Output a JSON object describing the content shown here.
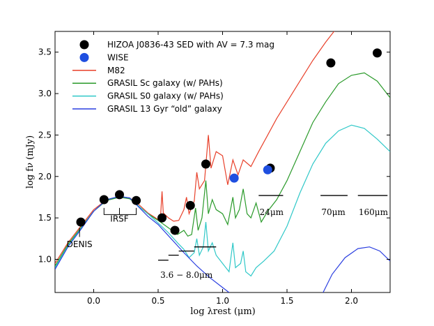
{
  "chart_data": {
    "type": "line",
    "title": "",
    "xlabel": "log λrest (μm)",
    "ylabel": "log fν (mJy)",
    "xlim": [
      -0.3,
      2.3
    ],
    "ylim": [
      0.6,
      3.75
    ],
    "xticks": [
      {
        "value": 0.0,
        "label": "0.0"
      },
      {
        "value": 0.5,
        "label": "0.5"
      },
      {
        "value": 1.0,
        "label": "1.0"
      },
      {
        "value": 1.5,
        "label": "1.5"
      },
      {
        "value": 2.0,
        "label": "2.0"
      }
    ],
    "yticks": [
      {
        "value": 1.0,
        "label": "1.0"
      },
      {
        "value": 1.5,
        "label": "1.5"
      },
      {
        "value": 2.0,
        "label": "2.0"
      },
      {
        "value": 2.5,
        "label": "2.5"
      },
      {
        "value": 3.0,
        "label": "3.0"
      },
      {
        "value": 3.5,
        "label": "3.5"
      }
    ],
    "legend": {
      "placement": "top-left",
      "entries": [
        {
          "label": "HIZOA J0836-43 SED with AV = 7.3 mag",
          "marker": "circle",
          "color": "#000000"
        },
        {
          "label": "WISE",
          "marker": "circle",
          "color": "#1f4fe0"
        },
        {
          "label": "M82",
          "marker": "line",
          "color": "#e8402a"
        },
        {
          "label": "GRASIL Sc galaxy (w/ PAHs)",
          "marker": "line",
          "color": "#2a9a2a"
        },
        {
          "label": "GRASIL S0 galaxy (w/ PAHs)",
          "marker": "line",
          "color": "#2fc8c8"
        },
        {
          "label": "GRASIL 13 Gyr “old” galaxy",
          "marker": "line",
          "color": "#2a3ee0"
        }
      ]
    },
    "series": [
      {
        "name": "M82",
        "color": "#e8402a",
        "points": [
          [
            -0.3,
            0.95
          ],
          [
            -0.2,
            1.2
          ],
          [
            -0.1,
            1.4
          ],
          [
            0.0,
            1.6
          ],
          [
            0.1,
            1.72
          ],
          [
            0.2,
            1.76
          ],
          [
            0.28,
            1.74
          ],
          [
            0.35,
            1.66
          ],
          [
            0.42,
            1.56
          ],
          [
            0.5,
            1.48
          ],
          [
            0.52,
            1.55
          ],
          [
            0.53,
            1.82
          ],
          [
            0.54,
            1.56
          ],
          [
            0.58,
            1.5
          ],
          [
            0.62,
            1.46
          ],
          [
            0.66,
            1.47
          ],
          [
            0.7,
            1.6
          ],
          [
            0.72,
            1.75
          ],
          [
            0.74,
            1.55
          ],
          [
            0.78,
            1.7
          ],
          [
            0.8,
            2.05
          ],
          [
            0.82,
            1.85
          ],
          [
            0.86,
            1.95
          ],
          [
            0.89,
            2.5
          ],
          [
            0.91,
            2.1
          ],
          [
            0.95,
            2.3
          ],
          [
            1.0,
            2.25
          ],
          [
            1.04,
            1.9
          ],
          [
            1.08,
            2.2
          ],
          [
            1.12,
            2.02
          ],
          [
            1.16,
            2.2
          ],
          [
            1.22,
            2.12
          ],
          [
            1.28,
            2.3
          ],
          [
            1.35,
            2.5
          ],
          [
            1.42,
            2.7
          ],
          [
            1.5,
            2.9
          ],
          [
            1.6,
            3.15
          ],
          [
            1.7,
            3.4
          ],
          [
            1.8,
            3.62
          ],
          [
            1.88,
            3.78
          ]
        ]
      },
      {
        "name": "GRASIL Sc galaxy (w/ PAHs)",
        "color": "#2a9a2a",
        "points": [
          [
            -0.3,
            0.92
          ],
          [
            -0.2,
            1.18
          ],
          [
            -0.1,
            1.38
          ],
          [
            0.0,
            1.58
          ],
          [
            0.1,
            1.71
          ],
          [
            0.2,
            1.75
          ],
          [
            0.28,
            1.73
          ],
          [
            0.35,
            1.64
          ],
          [
            0.42,
            1.55
          ],
          [
            0.5,
            1.47
          ],
          [
            0.58,
            1.38
          ],
          [
            0.65,
            1.3
          ],
          [
            0.7,
            1.35
          ],
          [
            0.73,
            1.28
          ],
          [
            0.76,
            1.3
          ],
          [
            0.79,
            1.62
          ],
          [
            0.81,
            1.35
          ],
          [
            0.84,
            1.5
          ],
          [
            0.87,
            1.95
          ],
          [
            0.89,
            1.55
          ],
          [
            0.92,
            1.72
          ],
          [
            0.95,
            1.6
          ],
          [
            1.0,
            1.55
          ],
          [
            1.04,
            1.42
          ],
          [
            1.08,
            1.75
          ],
          [
            1.1,
            1.5
          ],
          [
            1.13,
            1.6
          ],
          [
            1.16,
            1.85
          ],
          [
            1.19,
            1.55
          ],
          [
            1.22,
            1.5
          ],
          [
            1.26,
            1.68
          ],
          [
            1.3,
            1.45
          ],
          [
            1.35,
            1.58
          ],
          [
            1.42,
            1.72
          ],
          [
            1.5,
            1.95
          ],
          [
            1.6,
            2.3
          ],
          [
            1.7,
            2.65
          ],
          [
            1.8,
            2.9
          ],
          [
            1.9,
            3.12
          ],
          [
            2.0,
            3.22
          ],
          [
            2.1,
            3.25
          ],
          [
            2.2,
            3.15
          ],
          [
            2.3,
            2.95
          ]
        ]
      },
      {
        "name": "GRASIL S0 galaxy (w/ PAHs)",
        "color": "#2fc8c8",
        "points": [
          [
            -0.3,
            0.9
          ],
          [
            -0.2,
            1.16
          ],
          [
            -0.1,
            1.37
          ],
          [
            0.0,
            1.58
          ],
          [
            0.1,
            1.72
          ],
          [
            0.2,
            1.76
          ],
          [
            0.28,
            1.74
          ],
          [
            0.35,
            1.64
          ],
          [
            0.42,
            1.55
          ],
          [
            0.5,
            1.44
          ],
          [
            0.58,
            1.32
          ],
          [
            0.65,
            1.2
          ],
          [
            0.7,
            1.12
          ],
          [
            0.74,
            1.02
          ],
          [
            0.78,
            1.08
          ],
          [
            0.8,
            1.25
          ],
          [
            0.82,
            1.05
          ],
          [
            0.85,
            1.15
          ],
          [
            0.87,
            1.45
          ],
          [
            0.89,
            1.1
          ],
          [
            0.92,
            1.2
          ],
          [
            0.95,
            1.05
          ],
          [
            1.0,
            0.95
          ],
          [
            1.05,
            0.85
          ],
          [
            1.08,
            1.2
          ],
          [
            1.1,
            0.9
          ],
          [
            1.14,
            0.95
          ],
          [
            1.16,
            1.1
          ],
          [
            1.18,
            0.85
          ],
          [
            1.22,
            0.8
          ],
          [
            1.26,
            0.9
          ],
          [
            1.32,
            0.98
          ],
          [
            1.4,
            1.1
          ],
          [
            1.5,
            1.4
          ],
          [
            1.6,
            1.8
          ],
          [
            1.7,
            2.15
          ],
          [
            1.8,
            2.4
          ],
          [
            1.9,
            2.55
          ],
          [
            2.0,
            2.62
          ],
          [
            2.1,
            2.58
          ],
          [
            2.2,
            2.45
          ],
          [
            2.3,
            2.3
          ]
        ]
      },
      {
        "name": "GRASIL 13 Gyr “old” galaxy",
        "color": "#2a3ee0",
        "points": [
          [
            -0.3,
            0.88
          ],
          [
            -0.2,
            1.15
          ],
          [
            -0.1,
            1.36
          ],
          [
            0.0,
            1.58
          ],
          [
            0.1,
            1.72
          ],
          [
            0.2,
            1.76
          ],
          [
            0.28,
            1.74
          ],
          [
            0.35,
            1.63
          ],
          [
            0.42,
            1.52
          ],
          [
            0.5,
            1.42
          ],
          [
            0.6,
            1.25
          ],
          [
            0.7,
            1.08
          ],
          [
            0.8,
            0.92
          ],
          [
            0.9,
            0.78
          ],
          [
            1.0,
            0.66
          ],
          [
            1.05,
            0.6
          ]
        ]
      },
      {
        "name": "GRASIL 13 Gyr “old” galaxy (far-IR)",
        "color": "#2a3ee0",
        "points": [
          [
            1.78,
            0.6
          ],
          [
            1.85,
            0.82
          ],
          [
            1.95,
            1.02
          ],
          [
            2.05,
            1.13
          ],
          [
            2.14,
            1.15
          ],
          [
            2.22,
            1.1
          ],
          [
            2.3,
            0.98
          ]
        ]
      }
    ],
    "points_hizoa": [
      [
        -0.1,
        1.45
      ],
      [
        0.08,
        1.72
      ],
      [
        0.2,
        1.78
      ],
      [
        0.33,
        1.71
      ],
      [
        0.53,
        1.5
      ],
      [
        0.63,
        1.35
      ],
      [
        0.75,
        1.65
      ],
      [
        0.87,
        2.15
      ],
      [
        1.37,
        2.1
      ],
      [
        1.84,
        3.37
      ],
      [
        2.2,
        3.49
      ]
    ],
    "points_wise": [
      [
        1.09,
        1.98
      ],
      [
        1.35,
        2.08
      ]
    ],
    "upper_limits": [
      {
        "x": [
          0.5,
          0.58
        ],
        "y": 0.99
      },
      {
        "x": [
          0.58,
          0.66
        ],
        "y": 1.05
      },
      {
        "x": [
          0.66,
          0.78
        ],
        "y": 1.1
      },
      {
        "x": [
          0.78,
          0.95
        ],
        "y": 1.15
      },
      {
        "x": [
          1.28,
          1.47
        ],
        "y": 1.77
      },
      {
        "x": [
          1.76,
          1.97
        ],
        "y": 1.77
      },
      {
        "x": [
          2.05,
          2.28
        ],
        "y": 1.77
      }
    ],
    "annotations": [
      {
        "text": "DENIS",
        "x": -0.11,
        "y": 1.18
      },
      {
        "text": "IRSF",
        "x": 0.2,
        "y": 1.49
      },
      {
        "text": "3.6 − 8.0μm",
        "x": 0.72,
        "y": 0.81
      },
      {
        "text": "24μm",
        "x": 1.38,
        "y": 1.57
      },
      {
        "text": "70μm",
        "x": 1.86,
        "y": 1.57
      },
      {
        "text": "160μm",
        "x": 2.17,
        "y": 1.57
      }
    ]
  }
}
